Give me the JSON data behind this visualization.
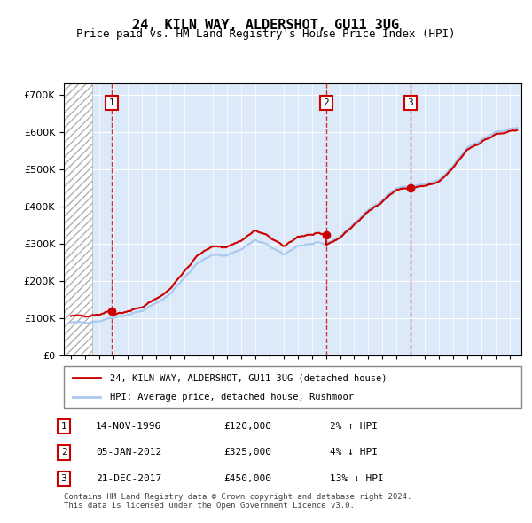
{
  "title": "24, KILN WAY, ALDERSHOT, GU11 3UG",
  "subtitle": "Price paid vs. HM Land Registry's House Price Index (HPI)",
  "xlabel": "",
  "ylabel": "",
  "ylim": [
    0,
    730000
  ],
  "yticks": [
    0,
    100000,
    200000,
    300000,
    400000,
    500000,
    600000,
    700000
  ],
  "ytick_labels": [
    "£0",
    "£100K",
    "£200K",
    "£300K",
    "£400K",
    "£500K",
    "£600K",
    "£700K"
  ],
  "background_color": "#ffffff",
  "plot_bg_color": "#dce9f8",
  "hatch_color": "#c0c0c0",
  "grid_color": "#ffffff",
  "hpi_color": "#a8c8f0",
  "price_color": "#cc0000",
  "sale_marker_color": "#cc0000",
  "vline_color": "#cc0000",
  "transactions": [
    {
      "date": 1996.87,
      "price": 120000,
      "label": "1"
    },
    {
      "date": 2012.02,
      "price": 325000,
      "label": "2"
    },
    {
      "date": 2017.97,
      "price": 450000,
      "label": "3"
    }
  ],
  "table_entries": [
    {
      "num": "1",
      "date": "14-NOV-1996",
      "price": "£120,000",
      "change": "2% ↑ HPI"
    },
    {
      "num": "2",
      "date": "05-JAN-2012",
      "price": "£325,000",
      "change": "4% ↓ HPI"
    },
    {
      "num": "3",
      "date": "21-DEC-2017",
      "price": "£450,000",
      "change": "13% ↓ HPI"
    }
  ],
  "legend_entries": [
    "24, KILN WAY, ALDERSHOT, GU11 3UG (detached house)",
    "HPI: Average price, detached house, Rushmoor"
  ],
  "footer": "Contains HM Land Registry data © Crown copyright and database right 2024.\nThis data is licensed under the Open Government Licence v3.0.",
  "xlim_start": 1993.5,
  "xlim_end": 2025.8,
  "hatch_end": 1995.5
}
